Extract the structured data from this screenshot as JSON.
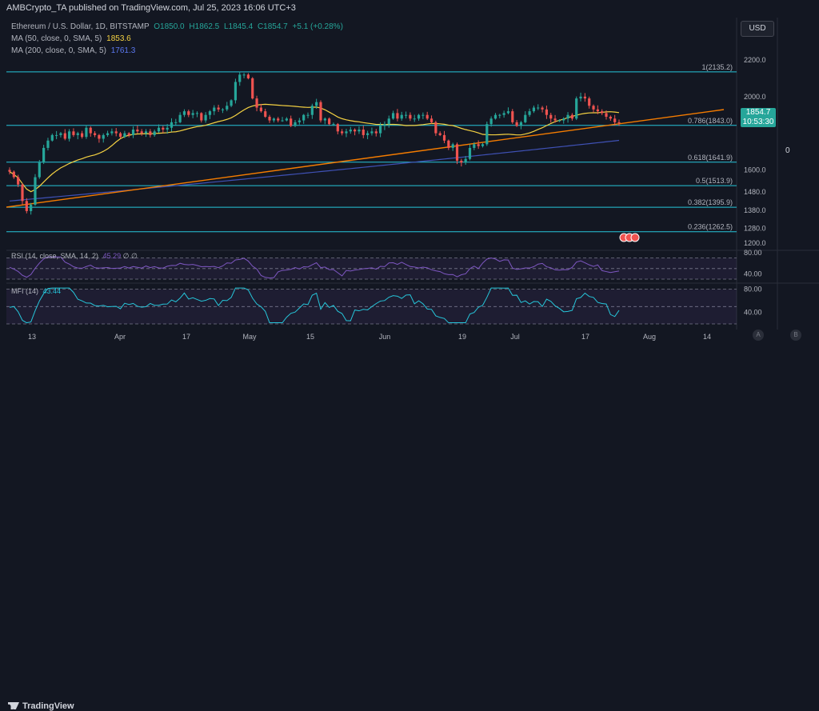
{
  "header": {
    "publisher": "AMBCrypto_TA published on TradingView.com, Jul 25, 2023 16:06 UTC+3"
  },
  "legend": {
    "symbol": "Ethereum / U.S. Dollar, 1D, BITSTAMP",
    "open": "O1850.0",
    "high": "H1862.5",
    "low": "L1845.4",
    "close": "C1854.7",
    "change": "+5.1 (+0.28%)",
    "ma50_label": "MA (50, close, 0, SMA, 5)",
    "ma50_value": "1853.6",
    "ma200_label": "MA (200, close, 0, SMA, 5)",
    "ma200_value": "1761.3"
  },
  "currency_button": "USD",
  "price_tag": {
    "price": "1854.7",
    "countdown": "10:53:30"
  },
  "right_value": "0",
  "rsi": {
    "label": "RSI (14, close, SMA, 14, 2)",
    "value": "45.29",
    "extra": "∅ ∅"
  },
  "mfi": {
    "label": "MFI (14)",
    "value": "43.44"
  },
  "footer": {
    "logo_text": "TradingView",
    "btn_a": "A",
    "btn_b": "B"
  },
  "colors": {
    "background": "#131722",
    "up": "#26a69a",
    "down": "#ef5350",
    "ma50": "#f5d242",
    "ma200": "#3f51b5",
    "trendline": "#f57c00",
    "fib": "#26c6da",
    "rsi": "#7e57c2",
    "mfi": "#26c6da"
  },
  "chart_data": [
    {
      "type": "candlestick",
      "title": "Ethereum / U.S. Dollar, 1D, BITSTAMP",
      "ylim": [
        1200,
        2250
      ],
      "y_ticks": [
        "2200.0",
        "2000.0",
        "1600.0",
        "1480.0",
        "1380.0",
        "1280.0",
        "1200.0"
      ],
      "x_ticks": [
        "13",
        "Apr",
        "17",
        "May",
        "15",
        "Jun",
        "19",
        "Jul",
        "17",
        "Aug",
        "14"
      ],
      "fib_levels": [
        {
          "label": "1(2135.2)",
          "value": 2135.2
        },
        {
          "label": "0.786(1843.0)",
          "value": 1843.0
        },
        {
          "label": "0.618(1641.9)",
          "value": 1641.9
        },
        {
          "label": "0.5(1513.9)",
          "value": 1513.9
        },
        {
          "label": "0.382(1395.9)",
          "value": 1395.9
        },
        {
          "label": "0.236(1262.5)",
          "value": 1262.5
        }
      ],
      "closes": [
        1590,
        1560,
        1520,
        1430,
        1375,
        1410,
        1560,
        1640,
        1720,
        1760,
        1790,
        1790,
        1800,
        1770,
        1810,
        1790,
        1800,
        1780,
        1830,
        1800,
        1790,
        1770,
        1790,
        1800,
        1810,
        1800,
        1780,
        1800,
        1790,
        1820,
        1810,
        1800,
        1810,
        1790,
        1810,
        1830,
        1820,
        1830,
        1860,
        1860,
        1900,
        1920,
        1900,
        1910,
        1910,
        1870,
        1900,
        1920,
        1940,
        1930,
        1930,
        1950,
        1980,
        2080,
        2120,
        2120,
        2100,
        1990,
        1940,
        1920,
        1890,
        1870,
        1880,
        1870,
        1870,
        1880,
        1840,
        1860,
        1870,
        1900,
        1900,
        1950,
        1970,
        1870,
        1880,
        1850,
        1850,
        1810,
        1800,
        1810,
        1820,
        1810,
        1820,
        1790,
        1800,
        1810,
        1800,
        1840,
        1850,
        1880,
        1910,
        1880,
        1900,
        1900,
        1880,
        1880,
        1900,
        1900,
        1880,
        1860,
        1800,
        1790,
        1760,
        1720,
        1740,
        1650,
        1640,
        1660,
        1720,
        1740,
        1730,
        1740,
        1850,
        1880,
        1900,
        1900,
        1910,
        1920,
        1860,
        1840,
        1860,
        1900,
        1920,
        1940,
        1940,
        1930,
        1900,
        1880,
        1870,
        1870,
        1880,
        1900,
        1880,
        1990,
        2000,
        1990,
        1950,
        1930,
        1920,
        1910,
        1890,
        1880,
        1860,
        1855
      ],
      "ma50_endpoints": [
        1590,
        1854
      ],
      "ma200_endpoints": [
        1430,
        1761
      ]
    },
    {
      "type": "line",
      "title": "RSI (14, close, SMA, 14, 2)",
      "ylim": [
        30,
        80
      ],
      "y_ticks": [
        "80.00",
        "40.00"
      ],
      "last_value": 45.29
    },
    {
      "type": "line",
      "title": "MFI (14)",
      "ylim": [
        20,
        85
      ],
      "y_ticks": [
        "80.00",
        "40.00"
      ],
      "last_value": 43.44
    }
  ]
}
